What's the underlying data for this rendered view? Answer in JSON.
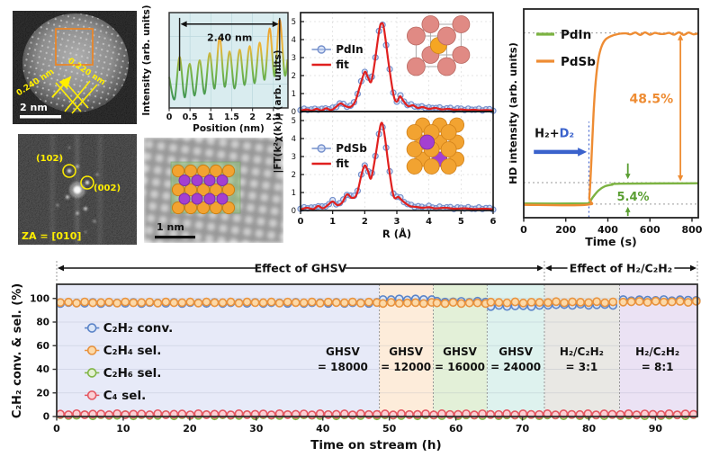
{
  "tem": {
    "scale_label": "2 nm",
    "spacing1": "0.240 nm",
    "spacing2": "0.220 nm",
    "box_color": "#e8862a",
    "annot_color": "#ffee00"
  },
  "fft": {
    "spot1": "(102)",
    "spot2": "(002)",
    "zone_axis": "ZA = [010]",
    "annot_color": "#ffee00"
  },
  "haadf": {
    "scale_label": "1 nm",
    "overlay_color": "rgba(147,197,125,0.55)",
    "atom_main": "#f2a331",
    "atom_dopant": "#a43fd1"
  },
  "models": {
    "pdin": {
      "corner_color": "#e08a84",
      "corner_stroke": "#b96a63",
      "center_color": "#f5a623",
      "center_stroke": "#cc851a"
    },
    "pdsb": {
      "main_color": "#f2a331",
      "main_stroke": "#d0801a",
      "dopant_color": "#a43fd1",
      "dopant_stroke": "#7d2ba3"
    }
  },
  "chart_data": [
    {
      "id": "profile",
      "type": "line",
      "xlabel": "Position (nm)",
      "ylabel": "Intensity (arb. units)",
      "xlim": [
        0,
        2.85
      ],
      "xticks": [
        0,
        0.5,
        1,
        1.5,
        2,
        2.5
      ],
      "bg": "#d9ecef",
      "grid_color": "#bcd9de",
      "line_gradient": [
        "#f0932b",
        "#e9b63a",
        "#7ab648",
        "#2e8b57"
      ],
      "annotation": {
        "label": "2.40 nm",
        "x0": 0.25,
        "x1": 2.65
      },
      "points": [
        [
          0,
          0.35
        ],
        [
          0.13,
          0.1
        ],
        [
          0.25,
          0.58
        ],
        [
          0.37,
          0.12
        ],
        [
          0.49,
          0.5
        ],
        [
          0.61,
          0.14
        ],
        [
          0.73,
          0.54
        ],
        [
          0.85,
          0.16
        ],
        [
          0.97,
          0.62
        ],
        [
          1.09,
          0.22
        ],
        [
          1.21,
          0.8
        ],
        [
          1.33,
          0.24
        ],
        [
          1.45,
          0.64
        ],
        [
          1.57,
          0.22
        ],
        [
          1.69,
          0.66
        ],
        [
          1.81,
          0.26
        ],
        [
          1.93,
          0.7
        ],
        [
          2.05,
          0.28
        ],
        [
          2.17,
          0.74
        ],
        [
          2.29,
          0.32
        ],
        [
          2.41,
          0.9
        ],
        [
          2.53,
          0.36
        ],
        [
          2.65,
          1.0
        ],
        [
          2.77,
          0.38
        ],
        [
          2.84,
          0.55
        ]
      ]
    },
    {
      "id": "exafs",
      "type": "line_scatter",
      "xlabel": "R (Å)",
      "ylabel": "|FT(k²χ(k))| (arb. units)",
      "xlim": [
        0,
        6
      ],
      "xticks": [
        0,
        1,
        2,
        3,
        4,
        5,
        6
      ],
      "yticks": [
        0,
        1,
        2,
        3,
        4,
        5
      ],
      "ylim": [
        0,
        5.5
      ],
      "marker_color": "#7590cc",
      "marker_fill": "rgba(185,203,240,0.5)",
      "fit_color": "#e0201f",
      "fit_label": "fit",
      "subplots": [
        {
          "name": "PdIn",
          "inset": "pdin",
          "fit": [
            [
              0,
              0.05
            ],
            [
              0.2,
              0.12
            ],
            [
              0.35,
              0.05
            ],
            [
              0.5,
              0.15
            ],
            [
              0.65,
              0.06
            ],
            [
              0.8,
              0.18
            ],
            [
              0.95,
              0.08
            ],
            [
              1.1,
              0.25
            ],
            [
              1.25,
              0.45
            ],
            [
              1.4,
              0.3
            ],
            [
              1.55,
              0.25
            ],
            [
              1.7,
              0.55
            ],
            [
              1.85,
              1.4
            ],
            [
              2.0,
              2.2
            ],
            [
              2.1,
              1.9
            ],
            [
              2.2,
              1.65
            ],
            [
              2.3,
              2.6
            ],
            [
              2.45,
              4.5
            ],
            [
              2.52,
              4.9
            ],
            [
              2.6,
              4.6
            ],
            [
              2.75,
              2.6
            ],
            [
              2.9,
              0.9
            ],
            [
              3.0,
              0.55
            ],
            [
              3.1,
              0.85
            ],
            [
              3.2,
              0.6
            ],
            [
              3.35,
              0.3
            ],
            [
              3.5,
              0.35
            ],
            [
              3.65,
              0.2
            ],
            [
              3.8,
              0.25
            ],
            [
              4.0,
              0.15
            ],
            [
              4.2,
              0.2
            ],
            [
              4.4,
              0.12
            ],
            [
              4.6,
              0.15
            ],
            [
              4.8,
              0.1
            ],
            [
              5.0,
              0.12
            ],
            [
              5.2,
              0.08
            ],
            [
              5.4,
              0.1
            ],
            [
              5.6,
              0.07
            ],
            [
              5.8,
              0.08
            ],
            [
              6.0,
              0.06
            ]
          ]
        },
        {
          "name": "PdSb",
          "inset": "pdsb",
          "fit": [
            [
              0,
              0.06
            ],
            [
              0.2,
              0.15
            ],
            [
              0.4,
              0.08
            ],
            [
              0.55,
              0.25
            ],
            [
              0.7,
              0.12
            ],
            [
              0.85,
              0.3
            ],
            [
              1.0,
              0.5
            ],
            [
              1.15,
              0.3
            ],
            [
              1.3,
              0.45
            ],
            [
              1.45,
              0.9
            ],
            [
              1.6,
              0.7
            ],
            [
              1.75,
              0.9
            ],
            [
              1.9,
              2.0
            ],
            [
              2.0,
              2.5
            ],
            [
              2.1,
              2.2
            ],
            [
              2.2,
              1.8
            ],
            [
              2.35,
              3.2
            ],
            [
              2.5,
              4.8
            ],
            [
              2.6,
              4.4
            ],
            [
              2.75,
              2.4
            ],
            [
              2.9,
              0.8
            ],
            [
              3.05,
              0.75
            ],
            [
              3.2,
              0.5
            ],
            [
              3.4,
              0.25
            ],
            [
              3.6,
              0.2
            ],
            [
              3.8,
              0.15
            ],
            [
              4.0,
              0.18
            ],
            [
              4.2,
              0.12
            ],
            [
              4.5,
              0.15
            ],
            [
              4.8,
              0.1
            ],
            [
              5.1,
              0.12
            ],
            [
              5.4,
              0.08
            ],
            [
              5.7,
              0.1
            ],
            [
              6.0,
              0.07
            ]
          ]
        }
      ]
    },
    {
      "id": "hd",
      "type": "line",
      "xlabel": "Time (s)",
      "ylabel": "HD intensity (arb. units)",
      "xlim": [
        0,
        830
      ],
      "xticks": [
        0,
        200,
        400,
        600,
        800
      ],
      "ylim": [
        0,
        1
      ],
      "series": [
        {
          "name": "PdIn",
          "color": "#7cb342",
          "points": [
            [
              0,
              0.068
            ],
            [
              290,
              0.068
            ],
            [
              310,
              0.072
            ],
            [
              330,
              0.1
            ],
            [
              355,
              0.13
            ],
            [
              385,
              0.15
            ],
            [
              420,
              0.158
            ],
            [
              460,
              0.163
            ],
            [
              830,
              0.165
            ]
          ]
        },
        {
          "name": "PdSb",
          "color": "#ee8c33",
          "points": [
            [
              0,
              0.062
            ],
            [
              300,
              0.062
            ],
            [
              312,
              0.1
            ],
            [
              322,
              0.28
            ],
            [
              332,
              0.5
            ],
            [
              342,
              0.65
            ],
            [
              355,
              0.76
            ],
            [
              370,
              0.82
            ],
            [
              390,
              0.855
            ],
            [
              420,
              0.872
            ],
            [
              460,
              0.882
            ]
          ]
        }
      ],
      "guides": {
        "hlines": [
          0.885,
          0.168,
          0.065
        ],
        "vline": 310,
        "guide_color": "#999999",
        "vline_color": "#4466cc"
      },
      "annotations": {
        "gas": [
          {
            "text": "H₂+",
            "color": "#111111"
          },
          {
            "text": "D₂",
            "color": "#3a62cc"
          }
        ],
        "arrow_color": "#3a62cc",
        "pdsb_pct": "48.5%",
        "pdsb_pct_color": "#ee8c33",
        "pdin_pct": "5.4%",
        "pdin_pct_color": "#5a9e32"
      }
    },
    {
      "id": "tos",
      "type": "scatter",
      "xlabel": "Time on stream (h)",
      "ylabel": "C₂H₂ conv. & sel.  (%)",
      "xlim": [
        0,
        96.3
      ],
      "ylim": [
        0,
        112
      ],
      "xticks": [
        0,
        10,
        20,
        30,
        40,
        50,
        60,
        70,
        80,
        90
      ],
      "yticks": [
        0,
        20,
        40,
        60,
        80,
        100
      ],
      "legend": [
        {
          "label": "C₂H₂ conv.",
          "stroke": "#5b84c8",
          "fill": "#dbe6f7"
        },
        {
          "label": "C₂H₄ sel.",
          "stroke": "#e8923d",
          "fill": "#fcd9a8"
        },
        {
          "label": "C₂H₆ sel.",
          "stroke": "#82b648",
          "fill": "#e4f1d3"
        },
        {
          "label": "C₄ sel.",
          "stroke": "#e45762",
          "fill": "#fbd0d4"
        }
      ],
      "regions": [
        {
          "lines": [
            "GHSV",
            "= 18000"
          ],
          "x0": 0,
          "x1": 48.5,
          "color": "#e7eaf8",
          "label_x": 43.0
        },
        {
          "lines": [
            "GHSV",
            "= 12000"
          ],
          "x0": 48.5,
          "x1": 56.6,
          "color": "#fdecda",
          "label_x": 52.5
        },
        {
          "lines": [
            "GHSV",
            "= 16000"
          ],
          "x0": 56.6,
          "x1": 64.7,
          "color": "#e3f0d8",
          "label_x": 60.6
        },
        {
          "lines": [
            "GHSV",
            "= 24000"
          ],
          "x0": 64.7,
          "x1": 73.3,
          "color": "#def2ee",
          "label_x": 69.0
        },
        {
          "lines": [
            "H₂/C₂H₂",
            "= 3:1"
          ],
          "x0": 73.3,
          "x1": 84.6,
          "color": "#e9e8e4",
          "label_x": 78.9
        },
        {
          "lines": [
            "H₂/C₂H₂",
            "= 8:1"
          ],
          "x0": 84.6,
          "x1": 96.3,
          "color": "#ebe2f4",
          "label_x": 90.3
        }
      ],
      "spans": [
        {
          "label": "Effect of GHSV",
          "x0": 0,
          "x1": 73.3
        },
        {
          "label": "Effect of H₂/C₂H₂",
          "x0": 73.3,
          "x1": 96.3
        }
      ],
      "series": [
        {
          "name": "C2H2_conv",
          "stroke": "#5b84c8",
          "fill": "#dbe6f7",
          "segments": [
            [
              0,
              48.5,
              96.2
            ],
            [
              48.5,
              56.6,
              99.2
            ],
            [
              56.6,
              64.7,
              97.2
            ],
            [
              64.7,
              73.3,
              93.6
            ],
            [
              73.3,
              84.6,
              94.6
            ],
            [
              84.6,
              96.3,
              98.6
            ]
          ]
        },
        {
          "name": "C2H4_sel",
          "stroke": "#e8923d",
          "fill": "#fcd9a8",
          "segments": [
            [
              0,
              48.5,
              96.6
            ],
            [
              48.5,
              56.6,
              96.2
            ],
            [
              56.6,
              64.7,
              96.1
            ],
            [
              64.7,
              73.3,
              96.6
            ],
            [
              73.3,
              84.6,
              96.8
            ],
            [
              84.6,
              96.3,
              97.2
            ]
          ]
        },
        {
          "name": "C2H6_sel",
          "stroke": "#82b648",
          "fill": "#e4f1d3",
          "segments": [
            [
              0,
              96.3,
              1.1
            ]
          ]
        },
        {
          "name": "C4_sel",
          "stroke": "#e45762",
          "fill": "#fbd0d4",
          "segments": [
            [
              0,
              96.3,
              1.9
            ]
          ]
        }
      ]
    }
  ]
}
